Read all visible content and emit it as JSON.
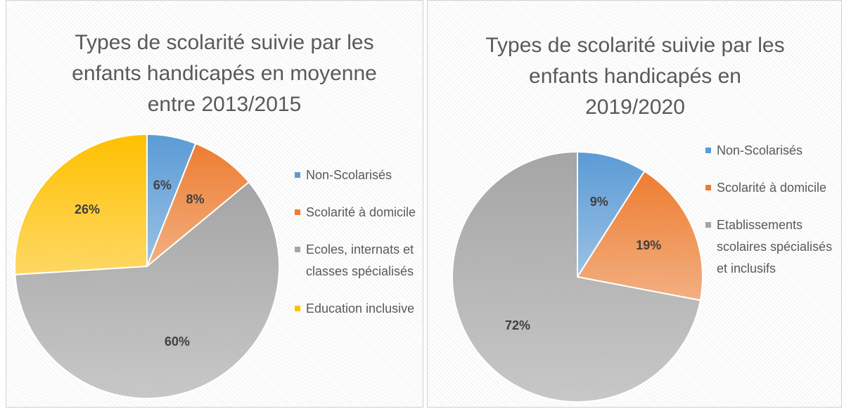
{
  "chart_data": [
    {
      "type": "pie",
      "title": "Types de scolarité suivie par les enfants handicapés en moyenne entre 2013/2015",
      "categories": [
        "Non-Scolarisés",
        "Scolarité à domicile",
        "Ecoles, internats et classes spécialisés",
        "Education inclusive"
      ],
      "values": [
        6,
        8,
        60,
        26
      ],
      "value_labels": [
        "6%",
        "8%",
        "60%",
        "26%"
      ],
      "colors": [
        "#5b9bd5",
        "#ed7d31",
        "#a5a5a5",
        "#ffc000"
      ],
      "legend": "right"
    },
    {
      "type": "pie",
      "title": "Types de scolarité suivie par les enfants handicapés en 2019/2020",
      "categories": [
        "Non-Scolarisés",
        "Scolarité à domicile",
        "Etablissements scolaires spécialisés et inclusifs"
      ],
      "values": [
        9,
        19,
        72
      ],
      "value_labels": [
        "9%",
        "19%",
        "72%"
      ],
      "colors": [
        "#5b9bd5",
        "#ed7d31",
        "#a5a5a5"
      ],
      "legend": "right"
    }
  ]
}
